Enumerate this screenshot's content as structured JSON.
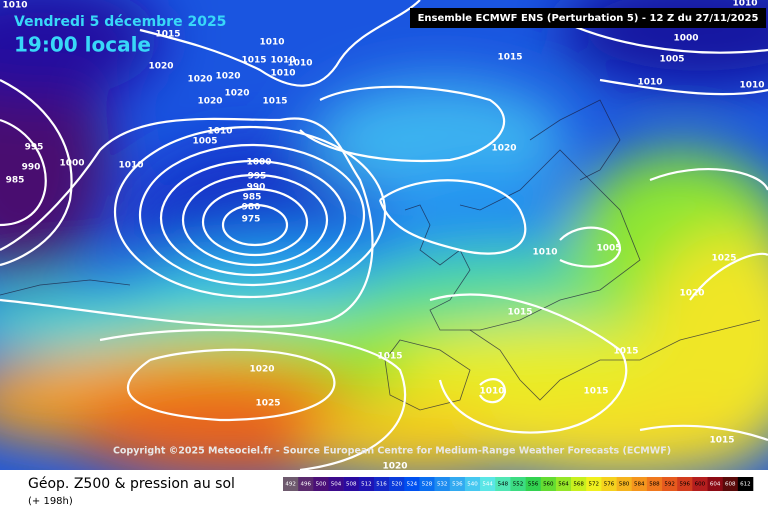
{
  "header": {
    "title": "Vendredi 5 décembre 2025",
    "time": "19:00 locale",
    "model": "Ensemble ECMWF ENS  (Perturbation 5)  -  12 Z du 27/11/2025"
  },
  "map": {
    "copyright": "Copyright ©2025 Meteociel.fr - Source European Centre for Medium-Range Weather Forecasts (ECMWF)",
    "isobar_labels": [
      1010,
      1010,
      1015,
      1010,
      1015,
      1010,
      1010,
      1010,
      1020,
      1020,
      1020,
      1020,
      1020,
      1015,
      1015,
      1000,
      1005,
      1010,
      1010,
      1010,
      1005,
      1010,
      1000,
      995,
      990,
      985,
      1000,
      995,
      990,
      985,
      980,
      975,
      1020,
      1005,
      1010,
      1025,
      1020,
      1015,
      1015,
      1015,
      1020,
      1025,
      1010,
      1015,
      1015,
      1020
    ]
  },
  "footer": {
    "title": "Géop. Z500 & pression au sol",
    "lead": "(+ 198h)"
  },
  "legend": {
    "labels": [
      492,
      496,
      500,
      504,
      508,
      512,
      516,
      520,
      524,
      528,
      532,
      536,
      540,
      544,
      548,
      552,
      556,
      560,
      564,
      568,
      572,
      576,
      580,
      584,
      588,
      592,
      596,
      600,
      604,
      608,
      612
    ],
    "colors": [
      "#6e5a6e",
      "#5a2a6e",
      "#4b0f78",
      "#3c0a8c",
      "#2a0aa0",
      "#1e14b4",
      "#1428c8",
      "#0a3cdc",
      "#0050f0",
      "#0a6ef0",
      "#1e8cf0",
      "#32aaf0",
      "#46c8f0",
      "#5ae6e6",
      "#50e6b4",
      "#3cdc82",
      "#32d250",
      "#64dc32",
      "#96e628",
      "#c8f01e",
      "#f0f01e",
      "#f5d21e",
      "#f5b41e",
      "#f5961e",
      "#f0781e",
      "#e65a1e",
      "#d23c1e",
      "#b41e1e",
      "#8c0a14",
      "#5a0a0a",
      "#000000"
    ]
  }
}
